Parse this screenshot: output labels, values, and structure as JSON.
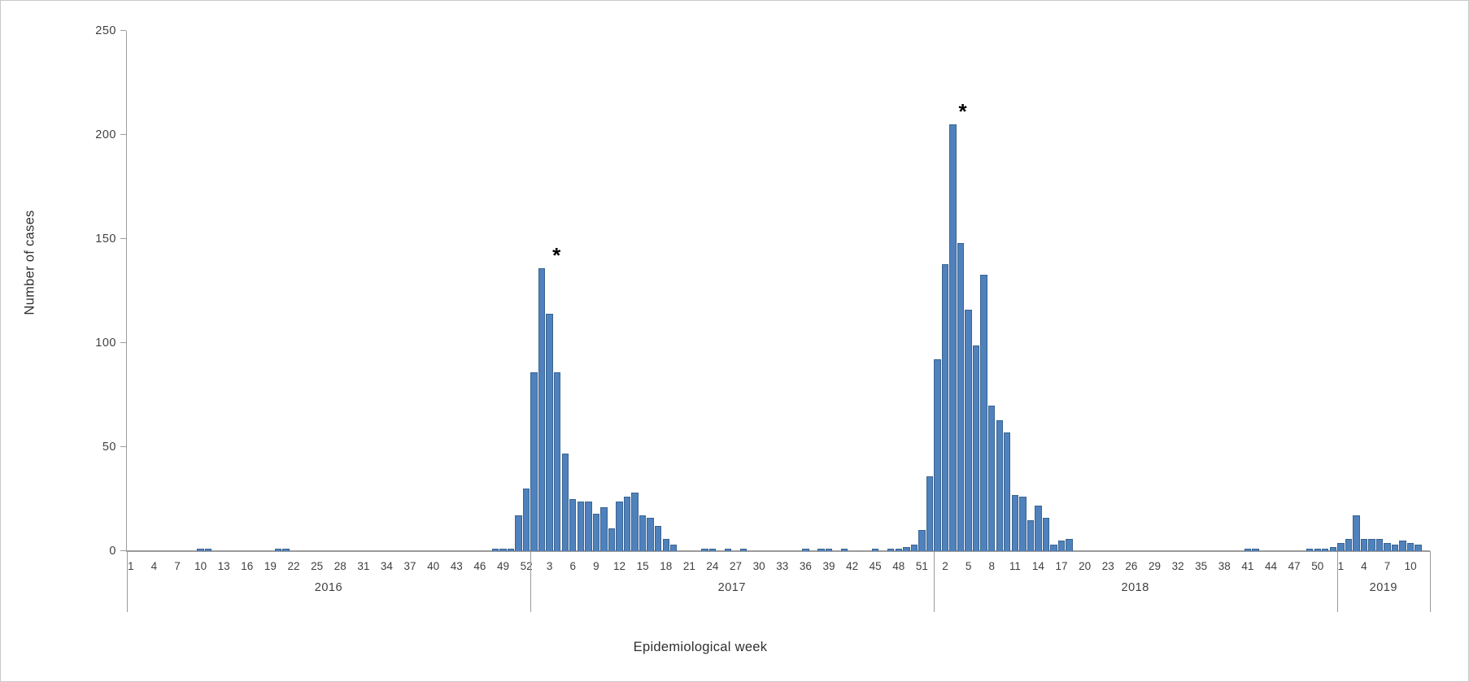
{
  "chart_data": {
    "type": "bar",
    "title": "",
    "xlabel": "Epidemiological week",
    "ylabel": "Number of cases",
    "ylim": [
      0,
      250
    ],
    "grid": false,
    "legend_position": "none",
    "y_tick_labels": [
      "0",
      "50",
      "100",
      "150",
      "200",
      "250"
    ],
    "bar_color": "#4F81BD",
    "bar_border_color": "#3a648f",
    "axis_color": "#9b9b9b",
    "text_color": "#3f3f3f",
    "series": [
      {
        "year": "2016",
        "weeks": 52,
        "tick_labels": [
          "1",
          "4",
          "7",
          "10",
          "13",
          "16",
          "19",
          "22",
          "25",
          "28",
          "31",
          "34",
          "37",
          "40",
          "43",
          "46",
          "49",
          "52"
        ],
        "values": [
          0,
          0,
          0,
          0,
          0,
          0,
          0,
          0,
          0,
          1,
          1,
          0,
          0,
          0,
          0,
          0,
          0,
          0,
          0,
          1,
          1,
          0,
          0,
          0,
          0,
          0,
          0,
          0,
          0,
          0,
          0,
          0,
          0,
          0,
          0,
          0,
          0,
          0,
          0,
          0,
          0,
          0,
          0,
          0,
          0,
          0,
          0,
          1,
          1,
          1,
          17,
          30
        ]
      },
      {
        "year": "2017",
        "weeks": 52,
        "tick_labels": [
          "3",
          "6",
          "9",
          "12",
          "15",
          "18",
          "21",
          "24",
          "27",
          "30",
          "33",
          "36",
          "39",
          "42",
          "45",
          "48",
          "51"
        ],
        "values": [
          86,
          136,
          114,
          86,
          47,
          25,
          24,
          24,
          18,
          21,
          11,
          24,
          26,
          28,
          17,
          16,
          12,
          6,
          3,
          0,
          0,
          0,
          1,
          1,
          0,
          1,
          0,
          1,
          0,
          0,
          0,
          0,
          0,
          0,
          0,
          1,
          0,
          1,
          1,
          0,
          1,
          0,
          0,
          0,
          1,
          0,
          1,
          1,
          2,
          3,
          10,
          36
        ]
      },
      {
        "year": "2018",
        "weeks": 52,
        "tick_labels": [
          "2",
          "5",
          "8",
          "11",
          "14",
          "17",
          "20",
          "23",
          "26",
          "29",
          "32",
          "35",
          "38",
          "41",
          "44",
          "47",
          "50"
        ],
        "values": [
          92,
          138,
          205,
          148,
          116,
          99,
          133,
          70,
          63,
          57,
          27,
          26,
          15,
          22,
          16,
          3,
          5,
          6,
          0,
          0,
          0,
          0,
          0,
          0,
          0,
          0,
          0,
          0,
          0,
          0,
          0,
          0,
          0,
          0,
          0,
          0,
          0,
          0,
          0,
          0,
          1,
          1,
          0,
          0,
          0,
          0,
          0,
          0,
          1,
          1,
          1,
          2
        ]
      },
      {
        "year": "2019",
        "weeks": 12,
        "tick_labels": [
          "1",
          "4",
          "7",
          "10"
        ],
        "values": [
          4,
          6,
          17,
          6,
          6,
          6,
          4,
          3,
          5,
          4,
          3,
          0
        ]
      }
    ],
    "annotations": [
      {
        "text": "*",
        "year": "2017",
        "week": 2,
        "value": 136,
        "dx": 18
      },
      {
        "text": "*",
        "year": "2018",
        "week": 3,
        "value": 205,
        "dx": 12
      }
    ]
  }
}
